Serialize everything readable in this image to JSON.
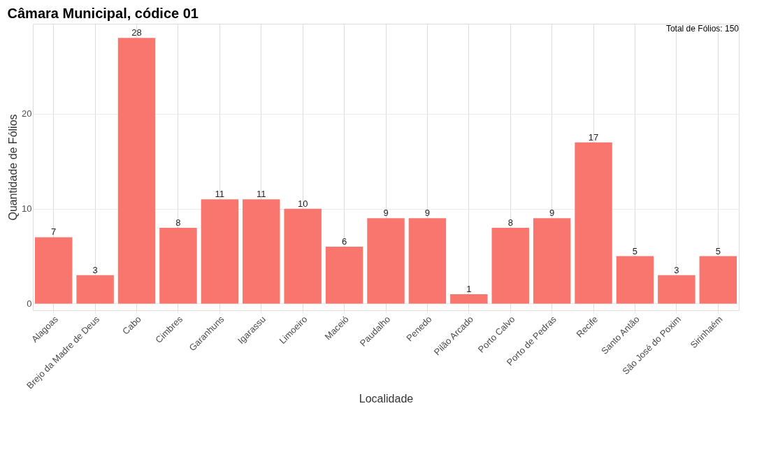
{
  "chart_data": {
    "type": "bar",
    "title": "Câmara Municipal, códice 01",
    "xlabel": "Localidade",
    "ylabel": "Quantidade de Fólios",
    "categories": [
      "Alagoas",
      "Brejo da Madre de Deus",
      "Cabo",
      "Cimbres",
      "Garanhuns",
      "Igarassu",
      "Limoeiro",
      "Maceió",
      "Paudalho",
      "Penedo",
      "Pilão Arcado",
      "Porto Calvo",
      "Porto de Pedras",
      "Recife",
      "Santo Antão",
      "São José do Poxim",
      "Sirinhaém"
    ],
    "values": [
      7,
      3,
      28,
      8,
      11,
      11,
      10,
      6,
      9,
      9,
      1,
      8,
      9,
      17,
      5,
      3,
      5
    ],
    "color": "#f8766d",
    "ylim": [
      -0.7,
      29.5
    ],
    "yticks": [
      0,
      10,
      20
    ],
    "grid": true,
    "data_labels": true,
    "annotations": [
      "Total de Fólios: 150"
    ]
  }
}
